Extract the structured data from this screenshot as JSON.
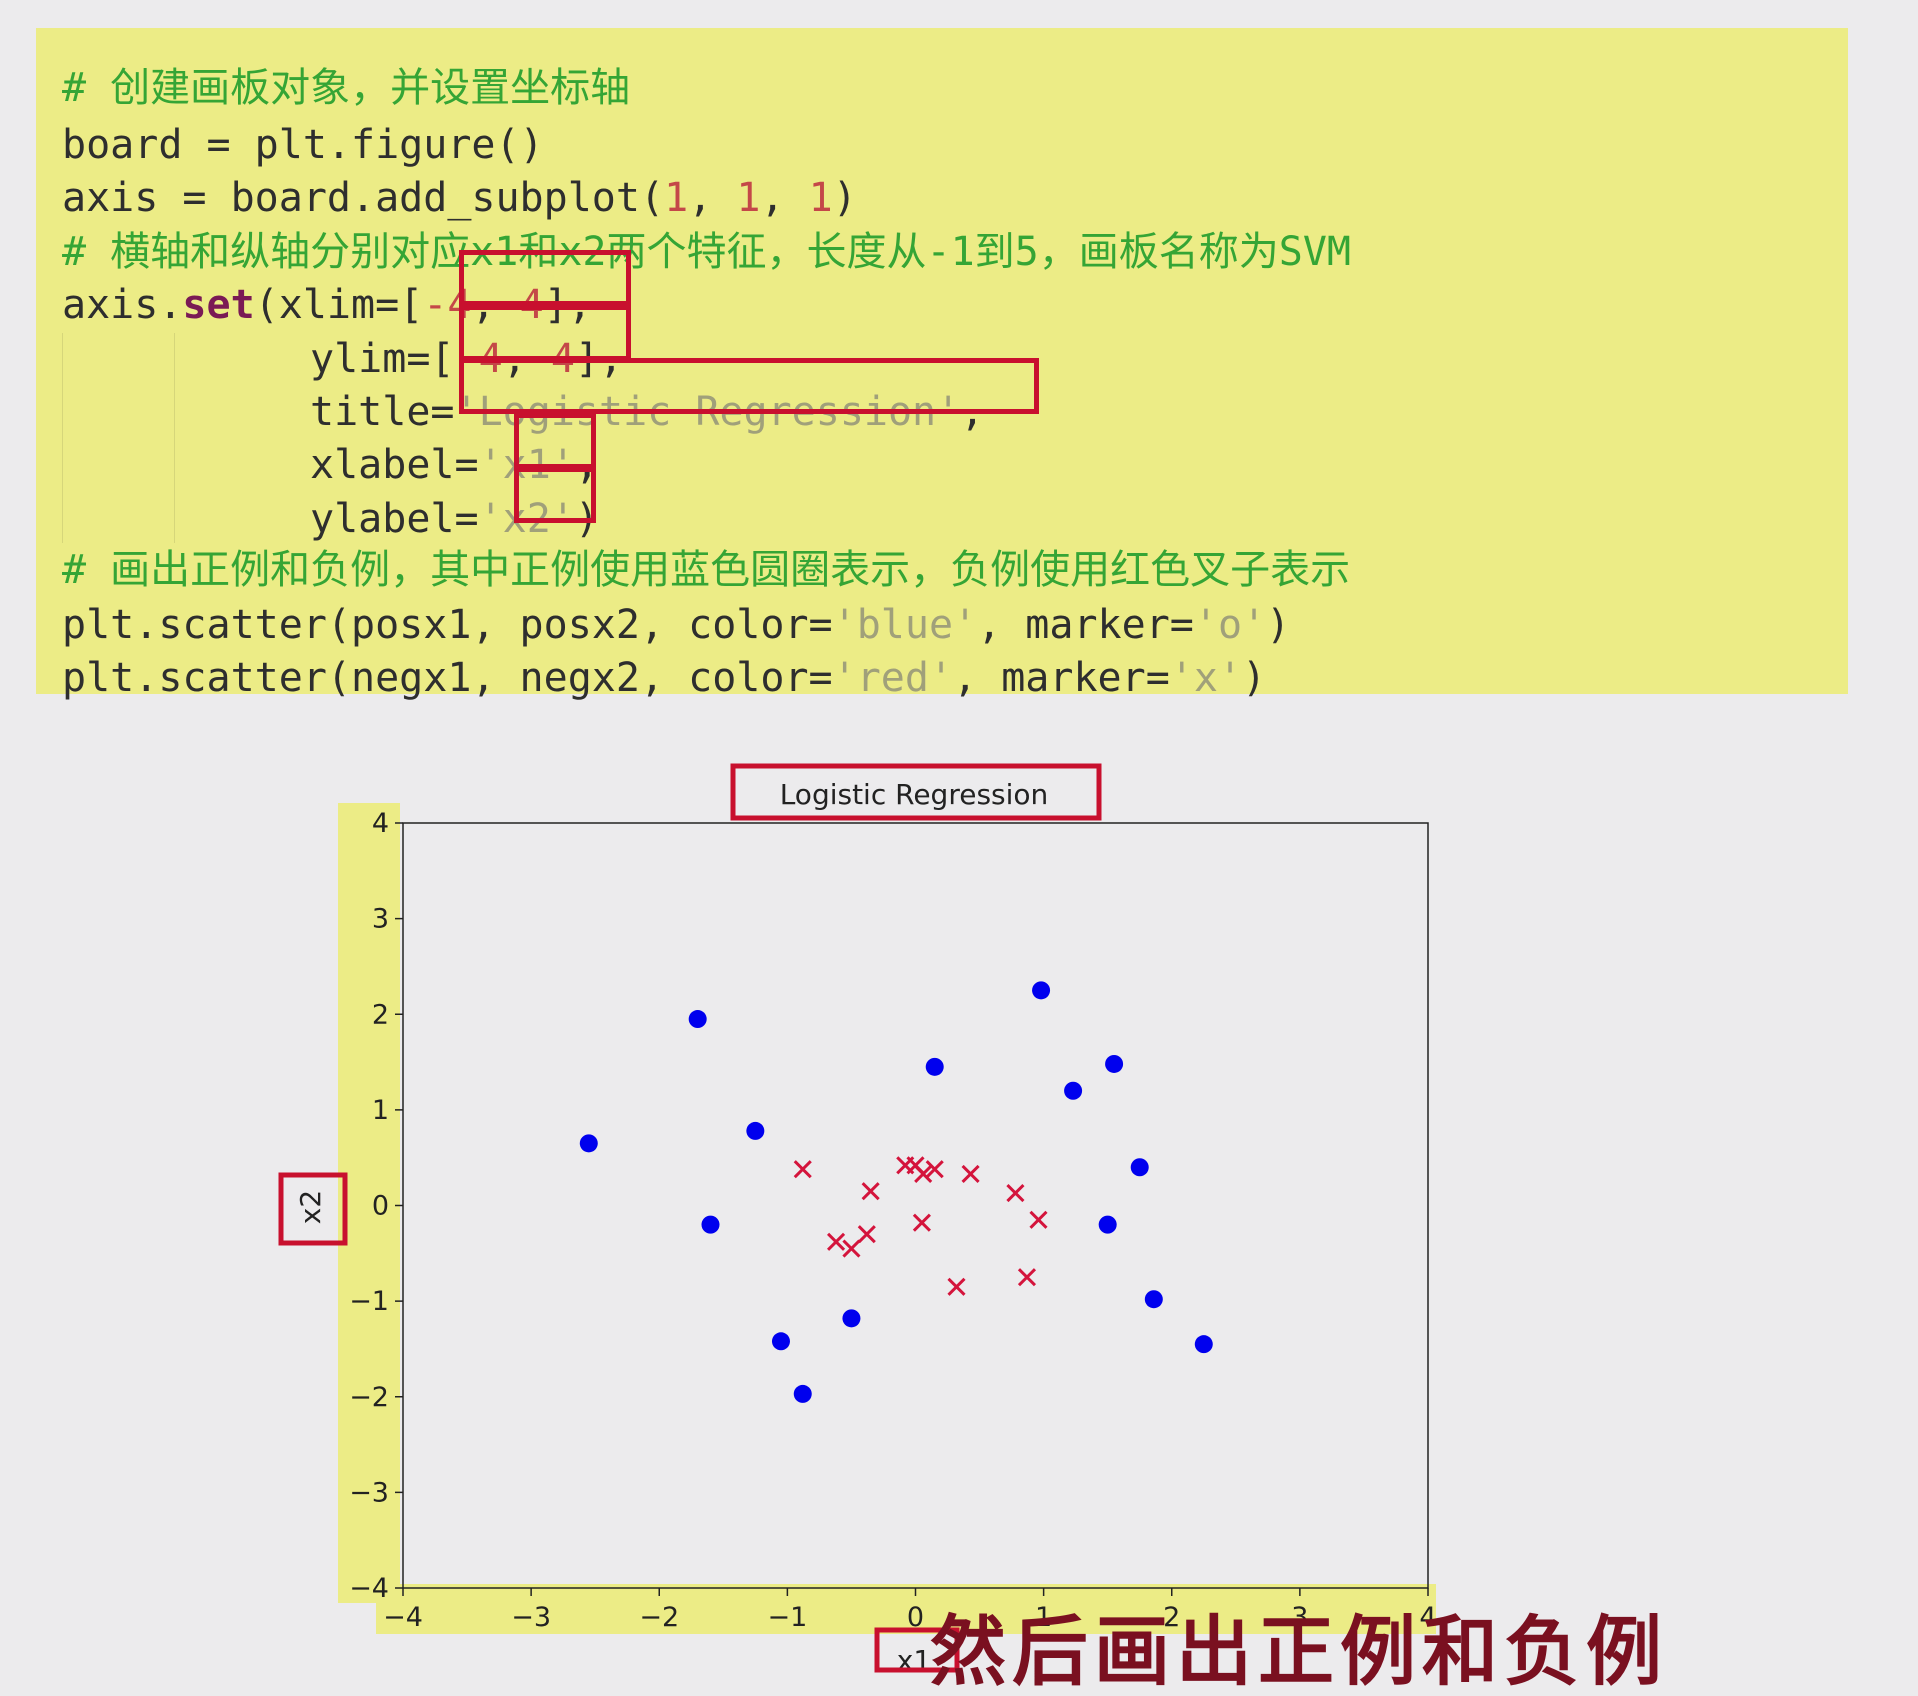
{
  "code": {
    "l1": "# 创建画板对象，并设置坐标轴",
    "l2": "board = plt.figure()",
    "l3a": "axis = board.add_subplot(",
    "l3b": "1",
    "l3c": ", ",
    "l3d": "1",
    "l3e": ", ",
    "l3f": "1",
    "l3g": ")",
    "l4": "# 横轴和纵轴分别对应x1和x2两个特征，长度从-1到5，画板名称为SVM",
    "l5a": "axis.",
    "l5b": "set",
    "l5c": "(xlim=[",
    "l5d": "-4",
    "l5e": ", ",
    "l5f": "4",
    "l5g": "],",
    "l6a": "ylim=[",
    "l6b": "-4",
    "l6c": ", ",
    "l6d": "4",
    "l6e": "],",
    "l7a": "title=",
    "l7b": "'Logistic Regression'",
    "l7c": ",",
    "l8a": "xlabel=",
    "l8b": "'x1'",
    "l8c": ",",
    "l9a": "ylabel=",
    "l9b": "'x2'",
    "l9c": ")",
    "l10": "# 画出正例和负例，其中正例使用蓝色圆圈表示，负例使用红色叉子表示",
    "l11a": "plt.scatter(posx1, posx2, color=",
    "l11b": "'blue'",
    "l11c": ", marker=",
    "l11d": "'o'",
    "l11e": ")",
    "l12a": "plt.scatter(negx1, negx2, color=",
    "l12b": "'red'",
    "l12c": ", marker=",
    "l12d": "'x'",
    "l12e": ")"
  },
  "subtitle": "然后画出正例和负例",
  "colors": {
    "highlight_yellow": "#ecec86",
    "box_red": "#c8102e",
    "positive": "#0000ee",
    "negative": "#d4143c"
  },
  "chart_data": {
    "type": "scatter",
    "title": "Logistic Regression",
    "xlabel": "x1",
    "ylabel": "x2",
    "xlim": [
      -4,
      4
    ],
    "ylim": [
      -4,
      4
    ],
    "xticks": [
      -4,
      -3,
      -2,
      -1,
      0,
      1,
      2,
      3,
      4
    ],
    "yticks": [
      -4,
      -3,
      -2,
      -1,
      0,
      1,
      2,
      3,
      4
    ],
    "grid": false,
    "series": [
      {
        "marker": "o",
        "color": "#0000ee",
        "points": [
          [
            -2.55,
            0.65
          ],
          [
            -1.7,
            1.95
          ],
          [
            -1.25,
            0.78
          ],
          [
            -1.6,
            -0.2
          ],
          [
            -1.05,
            -1.42
          ],
          [
            -0.88,
            -1.97
          ],
          [
            -0.5,
            -1.18
          ],
          [
            0.15,
            1.45
          ],
          [
            0.98,
            2.25
          ],
          [
            1.23,
            1.2
          ],
          [
            1.55,
            1.48
          ],
          [
            1.75,
            0.4
          ],
          [
            1.5,
            -0.2
          ],
          [
            1.86,
            -0.98
          ],
          [
            2.25,
            -1.45
          ]
        ]
      },
      {
        "marker": "x",
        "color": "#d4143c",
        "points": [
          [
            -0.88,
            0.38
          ],
          [
            -0.35,
            0.15
          ],
          [
            -0.62,
            -0.38
          ],
          [
            -0.5,
            -0.45
          ],
          [
            -0.38,
            -0.3
          ],
          [
            -0.08,
            0.42
          ],
          [
            0.0,
            0.42
          ],
          [
            0.06,
            0.33
          ],
          [
            0.15,
            0.38
          ],
          [
            0.43,
            0.33
          ],
          [
            0.78,
            0.13
          ],
          [
            0.96,
            -0.15
          ],
          [
            0.05,
            -0.18
          ],
          [
            0.32,
            -0.85
          ],
          [
            0.87,
            -0.75
          ]
        ]
      }
    ]
  }
}
